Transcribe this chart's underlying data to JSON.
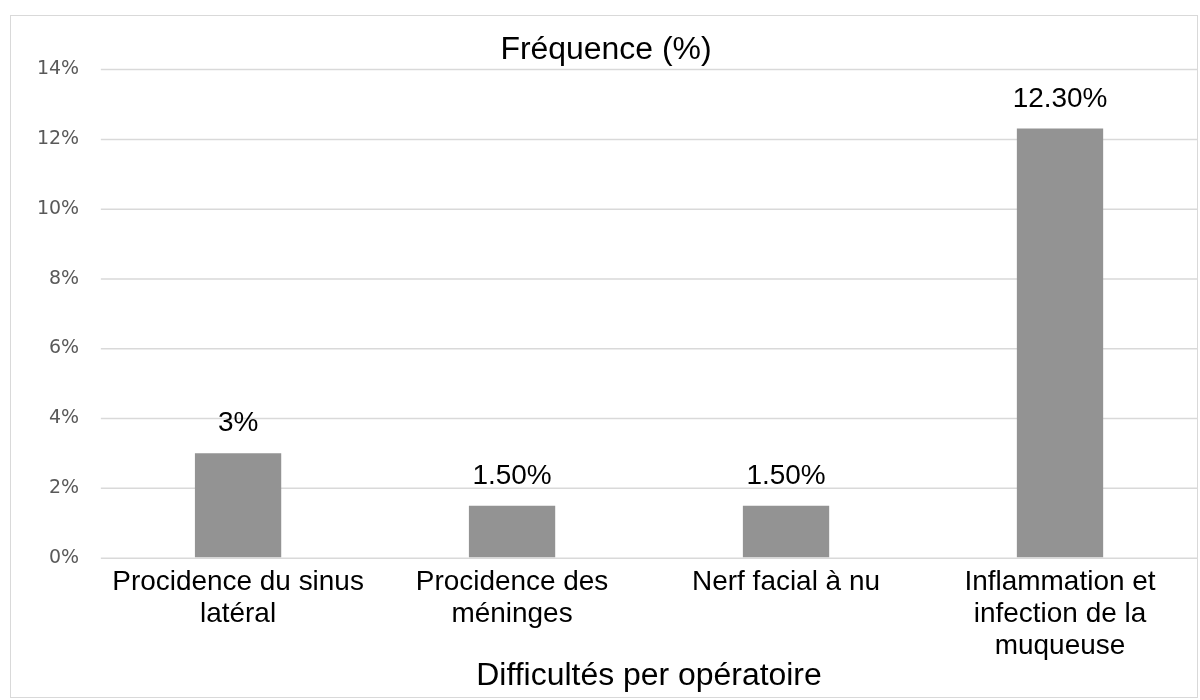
{
  "chart_data": {
    "type": "bar",
    "title": "Fréquence (%)",
    "xlabel": "Difficultés per opératoire",
    "categories": [
      "Procidence du sinus latéral",
      "Procidence des méninges",
      "Nerf facial à nu",
      "Inflammation et infection de la muqueuse"
    ],
    "values": [
      3,
      1.5,
      1.5,
      12.3
    ],
    "value_labels": [
      "3%",
      "1.50%",
      "1.50%",
      "12.30%"
    ],
    "color": "#939393",
    "ylim": [
      0,
      14
    ],
    "yticks": [
      {
        "value": 0,
        "label": "0%"
      },
      {
        "value": 2,
        "label": "2%"
      },
      {
        "value": 4,
        "label": "4%"
      },
      {
        "value": 6,
        "label": "6%"
      },
      {
        "value": 8,
        "label": "8%"
      },
      {
        "value": 10,
        "label": "10%"
      },
      {
        "value": 12,
        "label": "12%"
      },
      {
        "value": 14,
        "label": "14%"
      }
    ],
    "grid": "y",
    "legend": false
  }
}
